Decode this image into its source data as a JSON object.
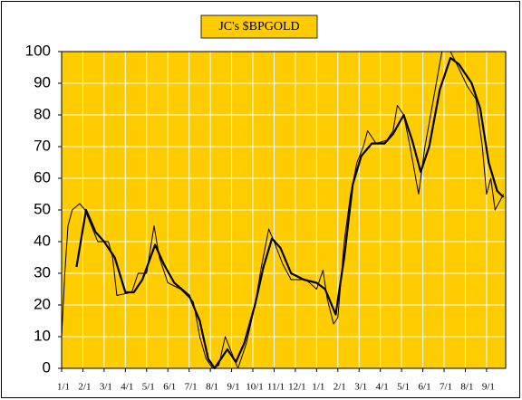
{
  "chart_data": {
    "type": "line",
    "title": "JC's $BPGOLD",
    "background": "#ffcc00",
    "grid": true,
    "xlim": [
      0,
      20.9
    ],
    "xticks": [
      {
        "value": 0,
        "label": "1/1"
      },
      {
        "value": 1,
        "label": "2/1"
      },
      {
        "value": 2,
        "label": "3/1"
      },
      {
        "value": 3,
        "label": "4/1"
      },
      {
        "value": 4,
        "label": "5/1"
      },
      {
        "value": 5,
        "label": "6/1"
      },
      {
        "value": 6,
        "label": "7/1"
      },
      {
        "value": 7,
        "label": "8/1"
      },
      {
        "value": 8,
        "label": "9/1"
      },
      {
        "value": 9,
        "label": "10/1"
      },
      {
        "value": 10,
        "label": "11/1"
      },
      {
        "value": 11,
        "label": "12/1"
      },
      {
        "value": 12,
        "label": "1/1"
      },
      {
        "value": 13,
        "label": "2/1"
      },
      {
        "value": 14,
        "label": "3/1"
      },
      {
        "value": 15,
        "label": "4/1"
      },
      {
        "value": 16,
        "label": "5/1"
      },
      {
        "value": 17,
        "label": "6/1"
      },
      {
        "value": 18,
        "label": "7/1"
      },
      {
        "value": 19,
        "label": "8/1"
      },
      {
        "value": 20,
        "label": "9/1"
      }
    ],
    "ylim": [
      0,
      100
    ],
    "yticks": [
      0,
      10,
      20,
      30,
      40,
      50,
      60,
      70,
      80,
      90,
      100
    ],
    "series": [
      {
        "color": "#000000",
        "width": 1,
        "x": [
          0,
          0.15,
          0.3,
          0.5,
          0.85,
          1.1,
          1.4,
          1.7,
          2.2,
          2.4,
          2.6,
          3.3,
          3.6,
          4.0,
          4.35,
          4.6,
          5.0,
          5.6,
          6.2,
          6.5,
          6.8,
          7.1,
          7.4,
          7.7,
          8.0,
          8.3,
          8.7,
          9.1,
          9.4,
          9.75,
          10.0,
          10.4,
          10.8,
          11.5,
          12.0,
          12.3,
          12.5,
          12.8,
          13.0,
          13.3,
          13.6,
          13.9,
          14.2,
          14.4,
          14.8,
          15.3,
          15.6,
          15.8,
          16.1,
          16.4,
          16.8,
          17.1,
          17.5,
          17.9,
          18.3,
          18.6,
          19.1,
          19.5,
          19.8,
          20.0,
          20.2,
          20.4,
          20.8
        ],
        "values": [
          10,
          30,
          45,
          50,
          52,
          50,
          45,
          40,
          40,
          35,
          23,
          24,
          30,
          30,
          45,
          35,
          27,
          25,
          21,
          10,
          3,
          0,
          1,
          10,
          5,
          0,
          8,
          20,
          32,
          44,
          40,
          33,
          28,
          28,
          25,
          31,
          22,
          14,
          16,
          40,
          55,
          65,
          70,
          75,
          71,
          72,
          75,
          83,
          80,
          70,
          55,
          70,
          85,
          100,
          100,
          96,
          89,
          85,
          70,
          55,
          60,
          50,
          55
        ]
      },
      {
        "color": "#000000",
        "width": 2.2,
        "x": [
          0.7,
          1.15,
          1.6,
          2.0,
          2.5,
          3.0,
          3.4,
          3.8,
          4.4,
          4.8,
          5.3,
          6.0,
          6.5,
          6.9,
          7.2,
          7.5,
          7.8,
          8.2,
          8.6,
          9.1,
          9.5,
          9.9,
          10.3,
          10.8,
          11.4,
          12.0,
          12.4,
          12.9,
          13.3,
          13.7,
          14.1,
          14.6,
          15.2,
          15.6,
          16.1,
          16.5,
          16.9,
          17.3,
          17.8,
          18.3,
          18.7,
          19.3,
          19.7,
          20.1,
          20.5,
          20.8
        ],
        "values": [
          32,
          50,
          43,
          40,
          35,
          24,
          24,
          28,
          39,
          33,
          27,
          23,
          15,
          3,
          0,
          3,
          6,
          2,
          8,
          20,
          32,
          41,
          38,
          30,
          28,
          27,
          25,
          17,
          35,
          58,
          67,
          71,
          71,
          74,
          80,
          72,
          62,
          70,
          88,
          98,
          96,
          90,
          82,
          65,
          56,
          54
        ]
      }
    ]
  }
}
